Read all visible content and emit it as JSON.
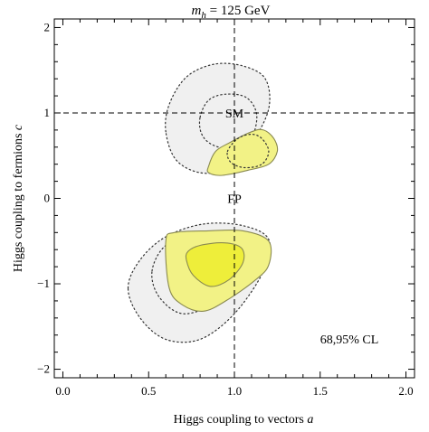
{
  "chart_data": {
    "type": "contour",
    "title_prefix": "m",
    "title_sub": "h",
    "title_suffix": " = 125 GeV",
    "xlabel_text": "Higgs coupling to vectors ",
    "xlabel_var": "a",
    "ylabel_text": "Higgs coupling to fermions ",
    "ylabel_var": "c",
    "xlim": [
      -0.05,
      2.05
    ],
    "ylim": [
      -2.1,
      2.1
    ],
    "xticks": [
      0.0,
      0.5,
      1.0,
      1.5,
      2.0
    ],
    "xtick_labels": [
      "0.0",
      "0.5",
      "1.0",
      "1.5",
      "2.0"
    ],
    "yticks": [
      -2,
      -1,
      0,
      1,
      2
    ],
    "ytick_labels": [
      "−2",
      "−1",
      "0",
      "1",
      "2"
    ],
    "reference_lines": {
      "x": 1.0,
      "y": 1.0,
      "style": "dashed"
    },
    "points": [
      {
        "label": "SM",
        "x": 1.0,
        "y": 1.0
      },
      {
        "label": "FP",
        "x": 1.0,
        "y": 0.0
      }
    ],
    "cl_label": "68,95% CL",
    "colors": {
      "fill_95": "#f0f0f0",
      "fill_68_region": "#f2f286",
      "fill_68_inner": "#eeee3a",
      "outline": "#8a8a50",
      "dotted": "#333333"
    },
    "regions": [
      {
        "name": "upper-outer-95",
        "style": "gray-dotted",
        "points": [
          [
            0.6,
            0.78
          ],
          [
            0.62,
            1.1
          ],
          [
            0.72,
            1.42
          ],
          [
            0.88,
            1.57
          ],
          [
            1.05,
            1.55
          ],
          [
            1.18,
            1.4
          ],
          [
            1.2,
            1.05
          ],
          [
            1.1,
            0.65
          ],
          [
            0.95,
            0.35
          ],
          [
            0.8,
            0.3
          ],
          [
            0.66,
            0.45
          ]
        ]
      },
      {
        "name": "upper-inner-68",
        "style": "dotted",
        "points": [
          [
            0.8,
            0.95
          ],
          [
            0.85,
            1.15
          ],
          [
            0.95,
            1.22
          ],
          [
            1.07,
            1.18
          ],
          [
            1.13,
            0.98
          ],
          [
            1.1,
            0.7
          ],
          [
            1.02,
            0.57
          ],
          [
            0.88,
            0.62
          ],
          [
            0.81,
            0.75
          ]
        ]
      },
      {
        "name": "upper-fp-95",
        "style": "yellow",
        "points": [
          [
            0.85,
            0.38
          ],
          [
            0.89,
            0.55
          ],
          [
            0.97,
            0.65
          ],
          [
            1.1,
            0.78
          ],
          [
            1.17,
            0.8
          ],
          [
            1.23,
            0.7
          ],
          [
            1.25,
            0.55
          ],
          [
            1.2,
            0.4
          ],
          [
            1.08,
            0.33
          ],
          [
            0.93,
            0.27
          ],
          [
            0.85,
            0.3
          ]
        ]
      },
      {
        "name": "upper-fp-68-dotted",
        "style": "dotted",
        "points": [
          [
            0.96,
            0.55
          ],
          [
            1.02,
            0.7
          ],
          [
            1.1,
            0.75
          ],
          [
            1.16,
            0.7
          ],
          [
            1.2,
            0.55
          ],
          [
            1.16,
            0.4
          ],
          [
            1.06,
            0.36
          ],
          [
            0.98,
            0.42
          ]
        ]
      },
      {
        "name": "lower-outer-95",
        "style": "gray-dotted",
        "points": [
          [
            0.38,
            -1.05
          ],
          [
            0.45,
            -0.72
          ],
          [
            0.6,
            -0.45
          ],
          [
            0.82,
            -0.3
          ],
          [
            1.05,
            -0.32
          ],
          [
            1.2,
            -0.48
          ],
          [
            1.17,
            -0.85
          ],
          [
            1.0,
            -1.35
          ],
          [
            0.8,
            -1.65
          ],
          [
            0.6,
            -1.65
          ],
          [
            0.45,
            -1.4
          ]
        ]
      },
      {
        "name": "lower-mid-95",
        "style": "dotted",
        "points": [
          [
            0.52,
            -0.85
          ],
          [
            0.6,
            -0.55
          ],
          [
            0.78,
            -0.42
          ],
          [
            1.02,
            -0.45
          ],
          [
            1.16,
            -0.62
          ],
          [
            1.1,
            -0.95
          ],
          [
            0.9,
            -1.22
          ],
          [
            0.7,
            -1.35
          ],
          [
            0.56,
            -1.15
          ]
        ]
      },
      {
        "name": "lower-yellow-95",
        "style": "yellow",
        "points": [
          [
            0.6,
            -0.5
          ],
          [
            0.62,
            -1.05
          ],
          [
            0.7,
            -1.25
          ],
          [
            0.82,
            -1.32
          ],
          [
            0.95,
            -1.2
          ],
          [
            1.12,
            -0.96
          ],
          [
            1.2,
            -0.78
          ],
          [
            1.2,
            -0.5
          ],
          [
            1.05,
            -0.38
          ],
          [
            0.85,
            -0.38
          ],
          [
            0.65,
            -0.4
          ]
        ]
      },
      {
        "name": "lower-yellow-68",
        "style": "yellow-inner",
        "points": [
          [
            0.72,
            -0.72
          ],
          [
            0.76,
            -0.9
          ],
          [
            0.86,
            -1.03
          ],
          [
            0.97,
            -0.95
          ],
          [
            1.05,
            -0.75
          ],
          [
            1.04,
            -0.58
          ],
          [
            0.94,
            -0.52
          ],
          [
            0.8,
            -0.55
          ],
          [
            0.73,
            -0.62
          ]
        ]
      }
    ]
  }
}
